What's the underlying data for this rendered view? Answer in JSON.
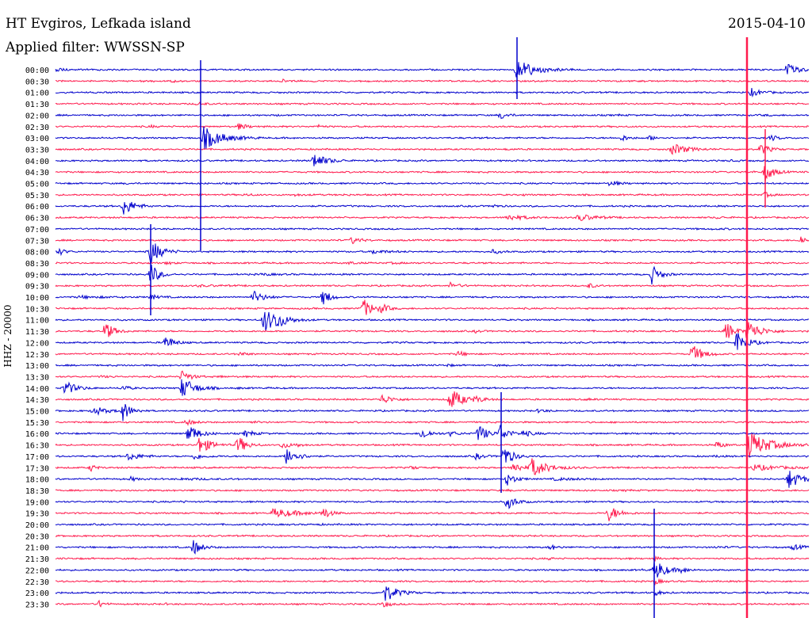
{
  "header": {
    "station": "HT Evgiros, Lefkada island",
    "date": "2015-04-10",
    "filter": "Applied filter: WWSSN-SP"
  },
  "chart_data": {
    "type": "line",
    "title": "HT Evgiros, Lefkada island",
    "ylabel": "HHZ - 20000",
    "colors": {
      "blue": "#0000cc",
      "red": "#ff1a4d"
    },
    "rows": [
      {
        "time": "00:00",
        "color": "blue",
        "events": [
          [
            70,
            0.3,
            55,
            3
          ],
          [
            301,
            0.3,
            10,
            1
          ],
          [
            652,
            1.0,
            45,
            10
          ],
          [
            993,
            0.8,
            30,
            8
          ]
        ]
      },
      {
        "time": "00:30",
        "color": "red",
        "events": [
          [
            218,
            0.4,
            10,
            2
          ],
          [
            356,
            0.5,
            12,
            3
          ]
        ]
      },
      {
        "time": "01:00",
        "color": "blue",
        "events": [
          [
            948,
            0.8,
            25,
            5
          ]
        ]
      },
      {
        "time": "01:30",
        "color": "red",
        "events": [
          [
            250,
            0.6,
            15,
            3
          ]
        ]
      },
      {
        "time": "02:00",
        "color": "blue",
        "events": [
          [
            632,
            0.8,
            15,
            5
          ],
          [
            778,
            0.3,
            12,
            2
          ],
          [
            965,
            0.3,
            12,
            2
          ],
          [
            350,
            0.3,
            10,
            1
          ]
        ]
      },
      {
        "time": "02:30",
        "color": "red",
        "events": [
          [
            190,
            0.4,
            12,
            3
          ],
          [
            302,
            0.7,
            18,
            5
          ],
          [
            402,
            0.5,
            12,
            3
          ],
          [
            598,
            0.2,
            8,
            1
          ]
        ]
      },
      {
        "time": "03:00",
        "color": "blue",
        "events": [
          [
            257,
            1.0,
            45,
            12
          ],
          [
            785,
            0.6,
            15,
            5
          ],
          [
            820,
            0.5,
            15,
            5
          ],
          [
            973,
            0.6,
            15,
            5
          ]
        ]
      },
      {
        "time": "03:30",
        "color": "red",
        "events": [
          [
            640,
            0.3,
            10,
            2
          ],
          [
            848,
            0.8,
            35,
            8
          ],
          [
            960,
            0.7,
            20,
            8
          ]
        ]
      },
      {
        "time": "04:00",
        "color": "blue",
        "events": [
          [
            396,
            1.0,
            30,
            8
          ],
          [
            920,
            0.3,
            15,
            2
          ]
        ]
      },
      {
        "time": "04:30",
        "color": "red",
        "events": [
          [
            943,
            0.4,
            15,
            3
          ],
          [
            965,
            1.0,
            20,
            10
          ]
        ]
      },
      {
        "time": "05:00",
        "color": "blue",
        "events": [
          [
            770,
            0.6,
            20,
            5
          ],
          [
            160,
            0.2,
            12,
            2
          ]
        ]
      },
      {
        "time": "05:30",
        "color": "red",
        "events": [
          [
            310,
            0.4,
            15,
            3
          ],
          [
            372,
            0.3,
            20,
            3
          ],
          [
            435,
            0.3,
            12,
            2
          ],
          [
            660,
            0.3,
            10,
            2
          ],
          [
            965,
            0.5,
            15,
            5
          ]
        ]
      },
      {
        "time": "06:00",
        "color": "blue",
        "events": [
          [
            156,
            1.0,
            25,
            10
          ],
          [
            620,
            0.5,
            15,
            4
          ],
          [
            442,
            0.2,
            8,
            1
          ]
        ]
      },
      {
        "time": "06:30",
        "color": "red",
        "events": [
          [
            640,
            0.6,
            40,
            5
          ],
          [
            730,
            0.6,
            40,
            6
          ],
          [
            905,
            0.3,
            15,
            3
          ]
        ]
      },
      {
        "time": "07:00",
        "color": "blue",
        "events": [
          [
            900,
            0.2,
            40,
            2
          ]
        ]
      },
      {
        "time": "07:30",
        "color": "red",
        "events": [
          [
            444,
            0.6,
            20,
            6
          ],
          [
            600,
            0.2,
            10,
            1
          ],
          [
            1010,
            0.8,
            12,
            6
          ]
        ]
      },
      {
        "time": "08:00",
        "color": "blue",
        "events": [
          [
            75,
            0.7,
            15,
            5
          ],
          [
            190,
            1.0,
            25,
            14
          ],
          [
            470,
            0.5,
            35,
            4
          ],
          [
            622,
            0.5,
            20,
            4
          ]
        ]
      },
      {
        "time": "08:30",
        "color": "red",
        "events": [
          [
            210,
            0.4,
            15,
            3
          ],
          [
            440,
            0.4,
            20,
            3
          ],
          [
            495,
            0.3,
            25,
            2
          ]
        ]
      },
      {
        "time": "09:00",
        "color": "blue",
        "events": [
          [
            190,
            1.0,
            20,
            12
          ],
          [
            822,
            1.0,
            20,
            10
          ],
          [
            330,
            0.3,
            40,
            3
          ]
        ]
      },
      {
        "time": "09:30",
        "color": "red",
        "events": [
          [
            568,
            0.6,
            20,
            5
          ],
          [
            743,
            0.5,
            15,
            5
          ],
          [
            250,
            0.3,
            60,
            2
          ]
        ]
      },
      {
        "time": "10:00",
        "color": "blue",
        "events": [
          [
            320,
            0.8,
            25,
            8
          ],
          [
            408,
            1.0,
            15,
            10
          ],
          [
            190,
            0.5,
            20,
            5
          ],
          [
            100,
            0.4,
            60,
            3
          ]
        ]
      },
      {
        "time": "10:30",
        "color": "red",
        "events": [
          [
            458,
            1.0,
            25,
            10
          ],
          [
            482,
            0.7,
            15,
            6
          ]
        ]
      },
      {
        "time": "11:00",
        "color": "blue",
        "events": [
          [
            333,
            1.0,
            40,
            12
          ],
          [
            350,
            0.7,
            15,
            8
          ]
        ]
      },
      {
        "time": "11:30",
        "color": "red",
        "events": [
          [
            133,
            1.0,
            20,
            10
          ],
          [
            600,
            0.4,
            15,
            3
          ],
          [
            916,
            1.0,
            20,
            10
          ],
          [
            943,
            1.0,
            30,
            12
          ]
        ]
      },
      {
        "time": "12:00",
        "color": "blue",
        "events": [
          [
            208,
            1.0,
            20,
            8
          ],
          [
            930,
            1.0,
            25,
            12
          ],
          [
            510,
            0.2,
            10,
            2
          ]
        ]
      },
      {
        "time": "12:30",
        "color": "red",
        "events": [
          [
            303,
            0.5,
            15,
            4
          ],
          [
            578,
            0.6,
            15,
            5
          ],
          [
            873,
            1.0,
            25,
            10
          ]
        ]
      },
      {
        "time": "13:00",
        "color": "blue",
        "events": [
          [
            565,
            0.4,
            10,
            3
          ],
          [
            628,
            0.3,
            10,
            2
          ]
        ]
      },
      {
        "time": "13:30",
        "color": "red",
        "events": [
          [
            230,
            0.8,
            20,
            8
          ],
          [
            278,
            0.4,
            8,
            3
          ],
          [
            128,
            0.3,
            20,
            3
          ]
        ]
      },
      {
        "time": "14:00",
        "color": "blue",
        "events": [
          [
            82,
            1.0,
            25,
            8
          ],
          [
            230,
            1.0,
            30,
            12
          ],
          [
            155,
            0.5,
            15,
            6
          ],
          [
            300,
            0.3,
            10,
            2
          ]
        ]
      },
      {
        "time": "14:30",
        "color": "red",
        "events": [
          [
            482,
            0.8,
            25,
            6
          ],
          [
            568,
            1.0,
            30,
            12
          ],
          [
            600,
            0.5,
            25,
            4
          ],
          [
            740,
            0.3,
            25,
            2
          ]
        ]
      },
      {
        "time": "15:00",
        "color": "blue",
        "events": [
          [
            118,
            0.8,
            30,
            6
          ],
          [
            155,
            1.0,
            20,
            10
          ],
          [
            680,
            0.5,
            15,
            4
          ]
        ]
      },
      {
        "time": "15:30",
        "color": "red",
        "events": [
          [
            235,
            0.6,
            20,
            5
          ],
          [
            318,
            0.3,
            15,
            3
          ]
        ]
      },
      {
        "time": "16:00",
        "color": "blue",
        "events": [
          [
            238,
            1.0,
            25,
            10
          ],
          [
            310,
            0.6,
            20,
            6
          ],
          [
            532,
            0.8,
            20,
            8
          ],
          [
            568,
            0.5,
            20,
            5
          ],
          [
            604,
            1.0,
            20,
            10
          ],
          [
            630,
            1.0,
            20,
            10
          ],
          [
            660,
            0.6,
            25,
            5
          ]
        ]
      },
      {
        "time": "16:30",
        "color": "red",
        "events": [
          [
            252,
            1.0,
            25,
            10
          ],
          [
            300,
            1.0,
            20,
            10
          ],
          [
            356,
            0.6,
            20,
            6
          ],
          [
            375,
            0.4,
            15,
            3
          ],
          [
            905,
            0.7,
            15,
            6
          ],
          [
            945,
            1.0,
            50,
            14
          ]
        ]
      },
      {
        "time": "17:00",
        "color": "blue",
        "events": [
          [
            162,
            0.8,
            30,
            5
          ],
          [
            245,
            0.6,
            25,
            5
          ],
          [
            362,
            1.0,
            25,
            10
          ],
          [
            600,
            0.6,
            20,
            5
          ],
          [
            636,
            1.0,
            20,
            12
          ],
          [
            905,
            0.4,
            10,
            3
          ]
        ]
      },
      {
        "time": "17:30",
        "color": "red",
        "events": [
          [
            115,
            0.7,
            12,
            5
          ],
          [
            520,
            0.5,
            10,
            4
          ],
          [
            648,
            0.8,
            20,
            8
          ],
          [
            670,
            1.0,
            40,
            10
          ],
          [
            950,
            0.6,
            60,
            5
          ]
        ]
      },
      {
        "time": "18:00",
        "color": "blue",
        "events": [
          [
            165,
            0.5,
            15,
            4
          ],
          [
            230,
            0.3,
            60,
            3
          ],
          [
            640,
            0.8,
            20,
            8
          ],
          [
            700,
            0.4,
            60,
            3
          ],
          [
            995,
            1.0,
            30,
            10
          ]
        ]
      },
      {
        "time": "18:30",
        "color": "red",
        "events": [
          [
            640,
            0.3,
            10,
            2
          ],
          [
            790,
            0.3,
            10,
            2
          ]
        ]
      },
      {
        "time": "19:00",
        "color": "blue",
        "events": [
          [
            640,
            1.0,
            20,
            8
          ],
          [
            230,
            0.3,
            8,
            2
          ]
        ]
      },
      {
        "time": "19:30",
        "color": "red",
        "events": [
          [
            345,
            0.8,
            60,
            6
          ],
          [
            408,
            0.8,
            15,
            8
          ],
          [
            768,
            1.0,
            25,
            8
          ]
        ]
      },
      {
        "time": "20:00",
        "color": "blue",
        "events": [
          [
            400,
            0.2,
            20,
            2
          ]
        ]
      },
      {
        "time": "20:30",
        "color": "red",
        "events": [
          [
            440,
            0.2,
            10,
            1
          ]
        ]
      },
      {
        "time": "21:00",
        "color": "blue",
        "events": [
          [
            244,
            1.0,
            20,
            8
          ],
          [
            694,
            0.6,
            15,
            5
          ],
          [
            1000,
            0.5,
            30,
            5
          ],
          [
            900,
            0.3,
            40,
            2
          ]
        ]
      },
      {
        "time": "21:30",
        "color": "red",
        "events": [
          [
            694,
            0.4,
            8,
            3
          ],
          [
            826,
            0.5,
            10,
            4
          ]
        ]
      },
      {
        "time": "22:00",
        "color": "blue",
        "events": [
          [
            826,
            1.0,
            25,
            12
          ],
          [
            860,
            0.6,
            15,
            5
          ],
          [
            810,
            0.3,
            10,
            2
          ]
        ]
      },
      {
        "time": "22:30",
        "color": "red",
        "events": [
          [
            826,
            0.6,
            15,
            5
          ]
        ]
      },
      {
        "time": "23:00",
        "color": "blue",
        "events": [
          [
            485,
            1.0,
            30,
            10
          ],
          [
            826,
            0.6,
            15,
            5
          ]
        ]
      },
      {
        "time": "23:30",
        "color": "red",
        "events": [
          [
            126,
            0.8,
            10,
            5
          ],
          [
            485,
            0.6,
            15,
            5
          ],
          [
            208,
            0.3,
            8,
            2
          ]
        ]
      }
    ],
    "saturated": [
      {
        "x": 942,
        "y1": 47,
        "y2": 780,
        "color": "red"
      },
      {
        "x": 652,
        "y1": 47,
        "y2": 125,
        "color": "blue"
      },
      {
        "x": 253,
        "y1": 76,
        "y2": 316,
        "color": "blue"
      },
      {
        "x": 190,
        "y1": 283,
        "y2": 398,
        "color": "blue"
      },
      {
        "x": 825,
        "y1": 642,
        "y2": 780,
        "color": "blue"
      },
      {
        "x": 632,
        "y1": 495,
        "y2": 622,
        "color": "blue"
      },
      {
        "x": 965,
        "y1": 163,
        "y2": 262,
        "color": "red"
      }
    ]
  }
}
